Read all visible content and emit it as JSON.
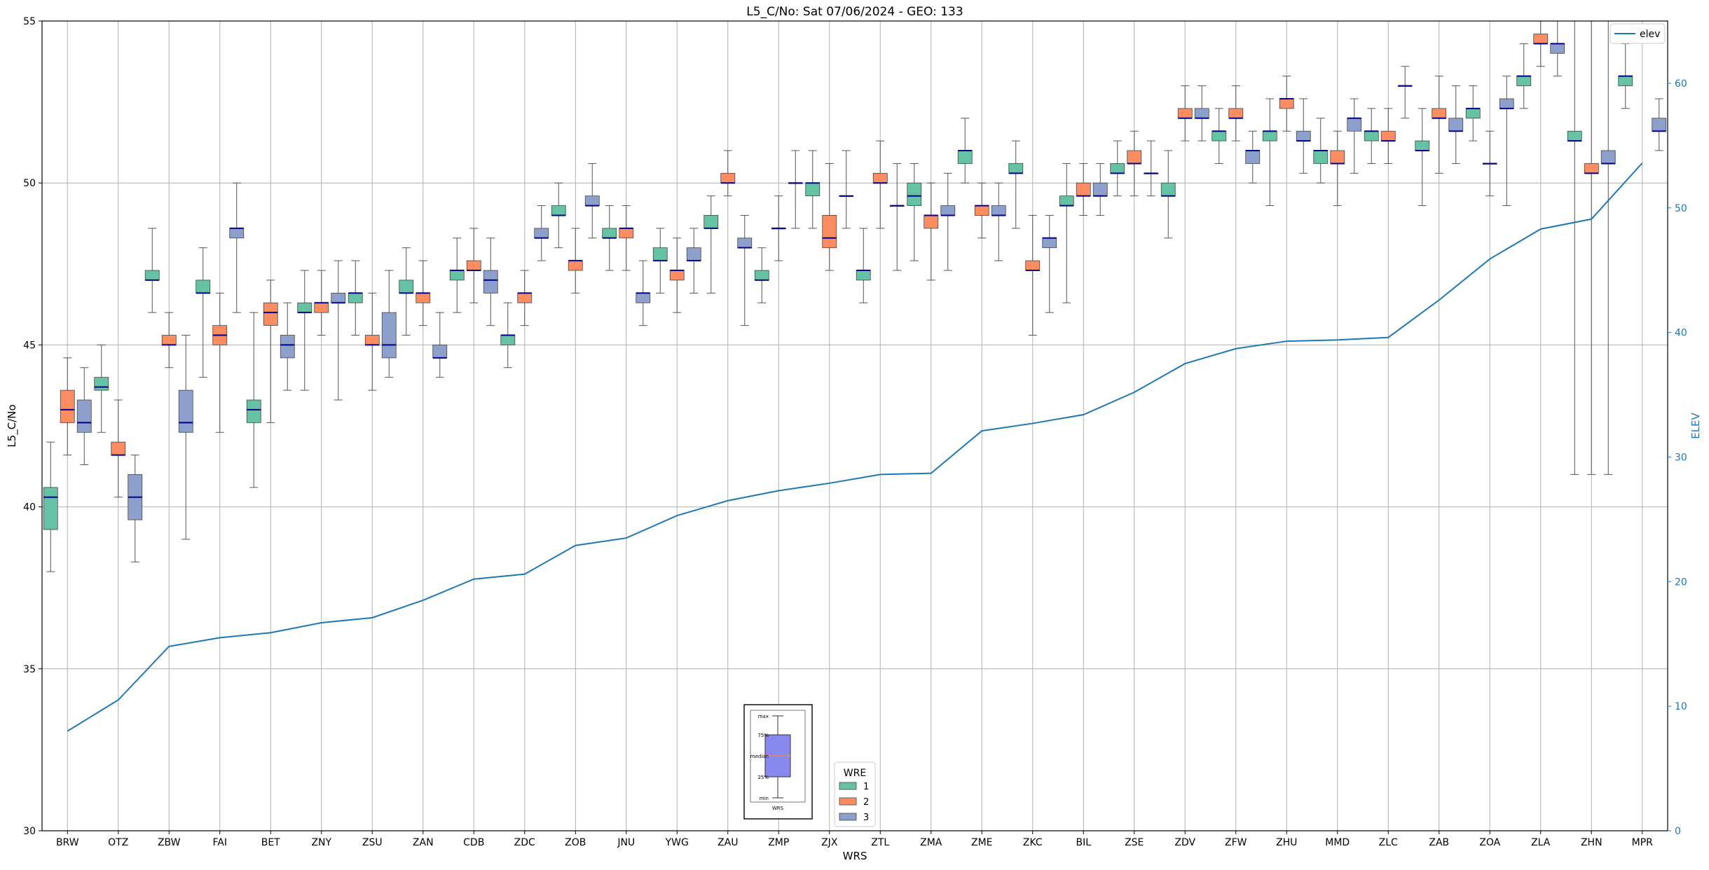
{
  "chart_data": {
    "type": "box",
    "title": "L5_C/No: Sat 07/06/2024 - GEO: 133",
    "xlabel": "WRS",
    "ylabel": "L5_C/No",
    "y2label": "ELEV",
    "ylim": [
      30,
      55
    ],
    "y2lim": [
      0,
      65
    ],
    "yticks": [
      30,
      35,
      40,
      45,
      50,
      55
    ],
    "y2ticks": [
      0,
      10,
      20,
      30,
      40,
      50,
      60
    ],
    "grid": true,
    "categories": [
      "BRW",
      "OTZ",
      "ZBW",
      "FAI",
      "BET",
      "ZNY",
      "ZSU",
      "ZAN",
      "CDB",
      "ZDC",
      "ZOB",
      "JNU",
      "YWG",
      "ZAU",
      "ZMP",
      "ZJX",
      "ZTL",
      "ZMA",
      "ZME",
      "ZKC",
      "BIL",
      "ZSE",
      "ZDV",
      "ZFW",
      "ZHU",
      "MMD",
      "ZLC",
      "ZAB",
      "ZOA",
      "ZLA",
      "ZHN",
      "MPR"
    ],
    "legend": {
      "title": "WRE",
      "placement": "bottom-center",
      "entries": [
        {
          "label": "1",
          "color": "#66c2a5"
        },
        {
          "label": "2",
          "color": "#fc8d62"
        },
        {
          "label": "3",
          "color": "#8da0cb"
        }
      ]
    },
    "legend2": {
      "placement": "top-right",
      "label": "elev",
      "color": "#1f77b4"
    },
    "inset": {
      "labels": [
        "max",
        "75%",
        "median",
        "25%",
        "min"
      ],
      "caption": "WRS"
    },
    "colors": {
      "wre1": "#66c2a5",
      "wre2": "#fc8d62",
      "wre3": "#8da0cb",
      "median": "#00008b",
      "whisker": "#555555",
      "elev": "#1f77b4"
    },
    "elev": [
      8,
      10.5,
      14.8,
      15.5,
      15.9,
      16.7,
      17.1,
      18.5,
      20.2,
      20.6,
      22.9,
      23.5,
      25.3,
      26.5,
      27.3,
      27.9,
      28.6,
      28.7,
      32.1,
      32.7,
      33.4,
      35.2,
      37.5,
      38.7,
      39.3,
      39.4,
      39.6,
      42.6,
      45.9,
      48.3,
      49.1,
      53.6
    ],
    "series": [
      {
        "name": "1",
        "boxes": [
          [
            0,
            38.0,
            39.3,
            40.3,
            40.6,
            42.0
          ],
          [
            1,
            42.3,
            43.6,
            43.7,
            44.0,
            45.0
          ],
          [
            2,
            46.0,
            47.0,
            47.0,
            47.3,
            48.6
          ],
          [
            3,
            44.0,
            46.6,
            46.6,
            47.0,
            48.0
          ],
          [
            4,
            40.6,
            42.6,
            43.0,
            43.3,
            46.0
          ],
          [
            5,
            43.6,
            46.0,
            46.0,
            46.3,
            47.3
          ],
          [
            6,
            45.3,
            46.3,
            46.6,
            46.6,
            47.6
          ],
          [
            7,
            45.3,
            46.6,
            46.6,
            47.0,
            48.0
          ],
          [
            8,
            46.0,
            47.0,
            47.3,
            47.3,
            48.3
          ],
          [
            9,
            44.3,
            45.0,
            45.3,
            45.3,
            46.3
          ],
          [
            10,
            48.0,
            49.0,
            49.0,
            49.3,
            50.0
          ],
          [
            11,
            47.3,
            48.3,
            48.3,
            48.6,
            49.3
          ],
          [
            12,
            46.6,
            47.6,
            47.6,
            48.0,
            48.6
          ],
          [
            13,
            46.6,
            48.6,
            48.6,
            49.0,
            49.6
          ],
          [
            14,
            46.3,
            47.0,
            47.0,
            47.3,
            48.0
          ],
          [
            15,
            48.6,
            49.6,
            50.0,
            50.0,
            51.0
          ],
          [
            16,
            46.3,
            47.0,
            47.3,
            47.3,
            48.6
          ],
          [
            17,
            47.6,
            49.3,
            49.6,
            50.0,
            50.6
          ],
          [
            18,
            50.0,
            50.6,
            51.0,
            51.0,
            52.0
          ],
          [
            19,
            48.6,
            50.3,
            50.3,
            50.6,
            51.3
          ],
          [
            20,
            46.3,
            49.3,
            49.3,
            49.6,
            50.6
          ],
          [
            21,
            49.6,
            50.3,
            50.3,
            50.6,
            51.3
          ],
          [
            22,
            48.3,
            49.6,
            49.6,
            50.0,
            51.0
          ],
          [
            23,
            50.6,
            51.3,
            51.6,
            51.6,
            52.3
          ],
          [
            24,
            49.3,
            51.3,
            51.6,
            51.6,
            52.6
          ],
          [
            25,
            50.0,
            50.6,
            51.0,
            51.0,
            52.0
          ],
          [
            26,
            50.6,
            51.3,
            51.6,
            51.6,
            52.3
          ],
          [
            27,
            49.3,
            51.0,
            51.0,
            51.3,
            52.3
          ],
          [
            28,
            51.3,
            52.0,
            52.3,
            52.3,
            53.0
          ],
          [
            29,
            52.3,
            53.0,
            53.3,
            53.3,
            54.3
          ],
          [
            30,
            41.0,
            51.3,
            51.3,
            51.6,
            55.0
          ],
          [
            31,
            52.3,
            53.0,
            53.3,
            53.3,
            54.3
          ]
        ]
      },
      {
        "name": "2",
        "boxes": [
          [
            0,
            41.6,
            42.6,
            43.0,
            43.6,
            44.6
          ],
          [
            1,
            40.3,
            41.6,
            41.6,
            42.0,
            43.3
          ],
          [
            2,
            44.3,
            45.0,
            45.0,
            45.3,
            46.0
          ],
          [
            3,
            42.3,
            45.0,
            45.3,
            45.6,
            46.6
          ],
          [
            4,
            42.6,
            45.6,
            46.0,
            46.3,
            47.0
          ],
          [
            5,
            45.3,
            46.0,
            46.3,
            46.3,
            47.3
          ],
          [
            6,
            43.6,
            45.0,
            45.0,
            45.3,
            46.6
          ],
          [
            7,
            45.6,
            46.3,
            46.6,
            46.6,
            47.6
          ],
          [
            8,
            46.3,
            47.3,
            47.3,
            47.6,
            48.6
          ],
          [
            9,
            45.6,
            46.3,
            46.6,
            46.6,
            47.3
          ],
          [
            10,
            46.6,
            47.3,
            47.6,
            47.6,
            48.6
          ],
          [
            11,
            47.3,
            48.3,
            48.6,
            48.6,
            49.3
          ],
          [
            12,
            46.0,
            47.0,
            47.3,
            47.3,
            48.3
          ],
          [
            13,
            49.6,
            50.0,
            50.0,
            50.3,
            51.0
          ],
          [
            14,
            47.6,
            48.6,
            48.6,
            48.6,
            49.6
          ],
          [
            15,
            47.3,
            48.0,
            48.3,
            49.0,
            50.6
          ],
          [
            16,
            48.6,
            50.0,
            50.0,
            50.3,
            51.3
          ],
          [
            17,
            47.0,
            48.6,
            49.0,
            49.0,
            50.0
          ],
          [
            18,
            48.3,
            49.0,
            49.3,
            49.3,
            50.0
          ],
          [
            19,
            45.3,
            47.3,
            47.3,
            47.6,
            49.0
          ],
          [
            20,
            49.0,
            49.6,
            49.6,
            50.0,
            50.6
          ],
          [
            21,
            49.6,
            50.6,
            50.6,
            51.0,
            51.6
          ],
          [
            22,
            51.3,
            52.0,
            52.0,
            52.3,
            53.0
          ],
          [
            23,
            51.3,
            52.0,
            52.0,
            52.3,
            53.0
          ],
          [
            24,
            51.6,
            52.3,
            52.6,
            52.6,
            53.3
          ],
          [
            25,
            49.3,
            50.6,
            50.6,
            51.0,
            51.6
          ],
          [
            26,
            50.6,
            51.3,
            51.3,
            51.6,
            52.3
          ],
          [
            27,
            50.3,
            52.0,
            52.0,
            52.3,
            53.3
          ],
          [
            28,
            49.6,
            50.6,
            50.6,
            50.6,
            51.6
          ],
          [
            29,
            53.6,
            54.3,
            54.3,
            54.6,
            55.0
          ],
          [
            30,
            41.0,
            50.3,
            50.3,
            50.6,
            55.0
          ]
        ]
      },
      {
        "name": "3",
        "boxes": [
          [
            0,
            41.3,
            42.3,
            42.6,
            43.3,
            44.3
          ],
          [
            1,
            38.3,
            39.6,
            40.3,
            41.0,
            41.6
          ],
          [
            2,
            39.0,
            42.3,
            42.6,
            43.6,
            45.3
          ],
          [
            3,
            46.0,
            48.3,
            48.6,
            48.6,
            50.0
          ],
          [
            4,
            43.6,
            44.6,
            45.0,
            45.3,
            46.3
          ],
          [
            5,
            43.3,
            46.3,
            46.3,
            46.6,
            47.6
          ],
          [
            6,
            44.0,
            44.6,
            45.0,
            46.0,
            47.3
          ],
          [
            7,
            44.0,
            44.6,
            44.6,
            45.0,
            46.0
          ],
          [
            8,
            45.6,
            46.6,
            47.0,
            47.3,
            48.3
          ],
          [
            9,
            47.6,
            48.3,
            48.3,
            48.6,
            49.3
          ],
          [
            10,
            48.3,
            49.3,
            49.3,
            49.6,
            50.6
          ],
          [
            11,
            45.6,
            46.3,
            46.6,
            46.6,
            47.6
          ],
          [
            12,
            46.6,
            47.6,
            47.6,
            48.0,
            48.6
          ],
          [
            13,
            45.6,
            48.0,
            48.0,
            48.3,
            49.0
          ],
          [
            14,
            48.6,
            50.0,
            50.0,
            50.0,
            51.0
          ],
          [
            15,
            48.6,
            49.6,
            49.6,
            49.6,
            51.0
          ],
          [
            16,
            47.3,
            49.3,
            49.3,
            49.3,
            50.6
          ],
          [
            17,
            47.3,
            49.0,
            49.0,
            49.3,
            50.3
          ],
          [
            18,
            47.6,
            49.0,
            49.0,
            49.3,
            50.0
          ],
          [
            19,
            46.0,
            48.0,
            48.3,
            48.3,
            49.0
          ],
          [
            20,
            49.0,
            49.6,
            49.6,
            50.0,
            50.6
          ],
          [
            21,
            49.6,
            50.3,
            50.3,
            50.3,
            51.3
          ],
          [
            22,
            51.3,
            52.0,
            52.0,
            52.3,
            53.0
          ],
          [
            23,
            50.0,
            50.6,
            51.0,
            51.0,
            51.6
          ],
          [
            24,
            50.3,
            51.3,
            51.3,
            51.6,
            52.6
          ],
          [
            25,
            50.3,
            51.6,
            52.0,
            52.0,
            52.6
          ],
          [
            26,
            52.0,
            53.0,
            53.0,
            53.0,
            53.6
          ],
          [
            27,
            50.6,
            51.6,
            51.6,
            52.0,
            53.0
          ],
          [
            28,
            49.3,
            52.3,
            52.3,
            52.6,
            53.3
          ],
          [
            29,
            53.3,
            54.0,
            54.3,
            54.3,
            55.0
          ],
          [
            30,
            41.0,
            50.6,
            50.6,
            51.0,
            55.0
          ],
          [
            31,
            51.0,
            51.6,
            51.6,
            52.0,
            52.6
          ]
        ]
      }
    ]
  }
}
